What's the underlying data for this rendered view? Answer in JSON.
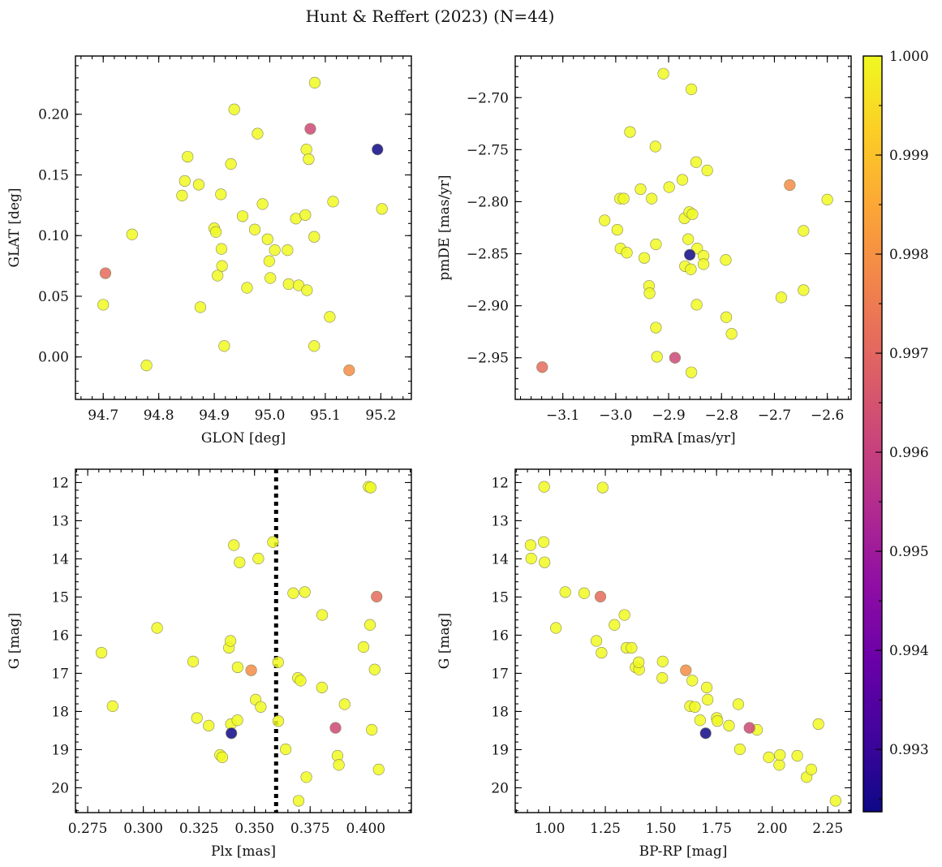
{
  "figure": {
    "title": "Hunt & Reffert (2023) (N=44)"
  },
  "colorbar": {
    "colormap": "plasma",
    "range": [
      0.99237,
      1.0
    ],
    "ticks": [
      0.993,
      0.994,
      0.995,
      0.996,
      0.997,
      0.998,
      0.999,
      1.0
    ],
    "tick_labels": [
      "0.993",
      "0.994",
      "0.995",
      "0.996",
      "0.997",
      "0.998",
      "0.999",
      "1.000"
    ]
  },
  "chart_data": [
    {
      "type": "scatter",
      "id": "glon-glat",
      "xlabel": "GLON [deg]",
      "ylabel": "GLAT [deg]",
      "xlim": [
        94.65,
        95.255
      ],
      "ylim": [
        -0.035,
        0.248
      ],
      "yinvert": false,
      "xticks": [
        94.7,
        94.8,
        94.9,
        95.0,
        95.1,
        95.2
      ],
      "xtick_labels": [
        "94.7",
        "94.8",
        "94.9",
        "95.0",
        "95.1",
        "95.2"
      ],
      "yticks": [
        0.0,
        0.05,
        0.1,
        0.15,
        0.2
      ],
      "ytick_labels": [
        "0.00",
        "0.05",
        "0.10",
        "0.15",
        "0.20"
      ],
      "points": [
        {
          "x": 94.7,
          "y": 0.043,
          "c": 1.0
        },
        {
          "x": 94.704,
          "y": 0.069,
          "c": 0.9971
        },
        {
          "x": 94.752,
          "y": 0.101,
          "c": 1.0
        },
        {
          "x": 94.778,
          "y": -0.007,
          "c": 1.0
        },
        {
          "x": 94.842,
          "y": 0.133,
          "c": 1.0
        },
        {
          "x": 94.847,
          "y": 0.145,
          "c": 1.0
        },
        {
          "x": 94.852,
          "y": 0.165,
          "c": 1.0
        },
        {
          "x": 94.872,
          "y": 0.142,
          "c": 1.0
        },
        {
          "x": 94.875,
          "y": 0.041,
          "c": 1.0
        },
        {
          "x": 94.9,
          "y": 0.106,
          "c": 1.0
        },
        {
          "x": 94.903,
          "y": 0.103,
          "c": 1.0
        },
        {
          "x": 94.906,
          "y": 0.067,
          "c": 1.0
        },
        {
          "x": 94.912,
          "y": 0.134,
          "c": 1.0
        },
        {
          "x": 94.913,
          "y": 0.089,
          "c": 1.0
        },
        {
          "x": 94.914,
          "y": 0.075,
          "c": 1.0
        },
        {
          "x": 94.918,
          "y": 0.009,
          "c": 1.0
        },
        {
          "x": 94.93,
          "y": 0.159,
          "c": 1.0
        },
        {
          "x": 94.936,
          "y": 0.204,
          "c": 1.0
        },
        {
          "x": 94.951,
          "y": 0.116,
          "c": 1.0
        },
        {
          "x": 94.959,
          "y": 0.057,
          "c": 1.0
        },
        {
          "x": 94.973,
          "y": 0.105,
          "c": 1.0
        },
        {
          "x": 94.978,
          "y": 0.184,
          "c": 1.0
        },
        {
          "x": 94.987,
          "y": 0.126,
          "c": 1.0
        },
        {
          "x": 94.996,
          "y": 0.097,
          "c": 1.0
        },
        {
          "x": 94.999,
          "y": 0.079,
          "c": 1.0
        },
        {
          "x": 95.001,
          "y": 0.065,
          "c": 1.0
        },
        {
          "x": 95.009,
          "y": 0.088,
          "c": 1.0
        },
        {
          "x": 95.032,
          "y": 0.088,
          "c": 1.0
        },
        {
          "x": 95.034,
          "y": 0.06,
          "c": 1.0
        },
        {
          "x": 95.047,
          "y": 0.114,
          "c": 1.0
        },
        {
          "x": 95.052,
          "y": 0.059,
          "c": 1.0
        },
        {
          "x": 95.064,
          "y": 0.117,
          "c": 1.0
        },
        {
          "x": 95.066,
          "y": 0.171,
          "c": 1.0
        },
        {
          "x": 95.067,
          "y": 0.055,
          "c": 1.0
        },
        {
          "x": 95.07,
          "y": 0.163,
          "c": 1.0
        },
        {
          "x": 95.073,
          "y": 0.188,
          "c": 0.9962
        },
        {
          "x": 95.08,
          "y": 0.099,
          "c": 1.0
        },
        {
          "x": 95.08,
          "y": 0.009,
          "c": 1.0
        },
        {
          "x": 95.081,
          "y": 0.226,
          "c": 1.0
        },
        {
          "x": 95.108,
          "y": 0.033,
          "c": 1.0
        },
        {
          "x": 95.114,
          "y": 0.128,
          "c": 1.0
        },
        {
          "x": 95.143,
          "y": -0.011,
          "c": 0.9979
        },
        {
          "x": 95.194,
          "y": 0.171,
          "c": 0.9924
        },
        {
          "x": 95.202,
          "y": 0.122,
          "c": 1.0
        }
      ]
    },
    {
      "type": "scatter",
      "id": "pmra-pmde",
      "xlabel": "pmRA [mas/yr]",
      "ylabel": "pmDE [mas/yr]",
      "xlim": [
        -3.19,
        -2.555
      ],
      "ylim": [
        -2.99,
        -2.66
      ],
      "yinvert": false,
      "xticks": [
        -3.1,
        -3.0,
        -2.9,
        -2.8,
        -2.7,
        -2.6
      ],
      "xtick_labels": [
        "−3.1",
        "−3.0",
        "−2.9",
        "−2.8",
        "−2.7",
        "−2.6"
      ],
      "yticks": [
        -2.95,
        -2.9,
        -2.85,
        -2.8,
        -2.75,
        -2.7
      ],
      "ytick_labels": [
        "−2.95",
        "−2.90",
        "−2.85",
        "−2.80",
        "−2.75",
        "−2.70"
      ],
      "points": [
        {
          "x": -3.139,
          "y": -2.959,
          "c": 0.9971
        },
        {
          "x": -3.021,
          "y": -2.818,
          "c": 1.0
        },
        {
          "x": -2.997,
          "y": -2.827,
          "c": 1.0
        },
        {
          "x": -2.992,
          "y": -2.797,
          "c": 1.0
        },
        {
          "x": -2.991,
          "y": -2.845,
          "c": 1.0
        },
        {
          "x": -2.985,
          "y": -2.797,
          "c": 1.0
        },
        {
          "x": -2.979,
          "y": -2.849,
          "c": 1.0
        },
        {
          "x": -2.973,
          "y": -2.733,
          "c": 1.0
        },
        {
          "x": -2.953,
          "y": -2.788,
          "c": 1.0
        },
        {
          "x": -2.946,
          "y": -2.854,
          "c": 1.0
        },
        {
          "x": -2.937,
          "y": -2.881,
          "c": 1.0
        },
        {
          "x": -2.936,
          "y": -2.888,
          "c": 1.0
        },
        {
          "x": -2.932,
          "y": -2.797,
          "c": 1.0
        },
        {
          "x": -2.925,
          "y": -2.747,
          "c": 1.0
        },
        {
          "x": -2.924,
          "y": -2.841,
          "c": 1.0
        },
        {
          "x": -2.924,
          "y": -2.921,
          "c": 1.0
        },
        {
          "x": -2.922,
          "y": -2.949,
          "c": 1.0
        },
        {
          "x": -2.91,
          "y": -2.677,
          "c": 1.0
        },
        {
          "x": -2.899,
          "y": -2.786,
          "c": 1.0
        },
        {
          "x": -2.888,
          "y": -2.95,
          "c": 0.9962
        },
        {
          "x": -2.874,
          "y": -2.779,
          "c": 1.0
        },
        {
          "x": -2.87,
          "y": -2.816,
          "c": 1.0
        },
        {
          "x": -2.869,
          "y": -2.862,
          "c": 1.0
        },
        {
          "x": -2.863,
          "y": -2.836,
          "c": 1.0
        },
        {
          "x": -2.861,
          "y": -2.81,
          "c": 1.0
        },
        {
          "x": -2.86,
          "y": -2.851,
          "c": 0.9924
        },
        {
          "x": -2.858,
          "y": -2.865,
          "c": 1.0
        },
        {
          "x": -2.857,
          "y": -2.964,
          "c": 1.0
        },
        {
          "x": -2.857,
          "y": -2.692,
          "c": 1.0
        },
        {
          "x": -2.855,
          "y": -2.812,
          "c": 1.0
        },
        {
          "x": -2.848,
          "y": -2.762,
          "c": 1.0
        },
        {
          "x": -2.847,
          "y": -2.899,
          "c": 1.0
        },
        {
          "x": -2.846,
          "y": -2.845,
          "c": 1.0
        },
        {
          "x": -2.834,
          "y": -2.852,
          "c": 1.0
        },
        {
          "x": -2.834,
          "y": -2.86,
          "c": 1.0
        },
        {
          "x": -2.827,
          "y": -2.77,
          "c": 1.0
        },
        {
          "x": -2.792,
          "y": -2.856,
          "c": 1.0
        },
        {
          "x": -2.791,
          "y": -2.911,
          "c": 1.0
        },
        {
          "x": -2.781,
          "y": -2.927,
          "c": 1.0
        },
        {
          "x": -2.687,
          "y": -2.892,
          "c": 1.0
        },
        {
          "x": -2.671,
          "y": -2.784,
          "c": 0.9979
        },
        {
          "x": -2.645,
          "y": -2.828,
          "c": 1.0
        },
        {
          "x": -2.645,
          "y": -2.885,
          "c": 1.0
        },
        {
          "x": -2.6,
          "y": -2.798,
          "c": 1.0
        }
      ]
    },
    {
      "type": "scatter",
      "id": "plx-g",
      "xlabel": "Plx [mas]",
      "ylabel": "G [mag]",
      "xlim": [
        0.2695,
        0.4205
      ],
      "ylim": [
        11.65,
        20.65
      ],
      "yinvert": true,
      "xticks": [
        0.275,
        0.3,
        0.325,
        0.35,
        0.375,
        0.4
      ],
      "xtick_labels": [
        "0.275",
        "0.300",
        "0.325",
        "0.350",
        "0.375",
        "0.400"
      ],
      "yticks": [
        12,
        13,
        14,
        15,
        16,
        17,
        18,
        19,
        20
      ],
      "ytick_labels": [
        "12",
        "13",
        "14",
        "15",
        "16",
        "17",
        "18",
        "19",
        "20"
      ],
      "vline": {
        "x": 0.3597
      },
      "points": [
        {
          "x": 0.2812,
          "y": 16.46,
          "c": 1.0
        },
        {
          "x": 0.2862,
          "y": 17.86,
          "c": 1.0
        },
        {
          "x": 0.3062,
          "y": 15.81,
          "c": 1.0
        },
        {
          "x": 0.3224,
          "y": 16.69,
          "c": 1.0
        },
        {
          "x": 0.3241,
          "y": 18.17,
          "c": 1.0
        },
        {
          "x": 0.3294,
          "y": 18.37,
          "c": 1.0
        },
        {
          "x": 0.3345,
          "y": 19.14,
          "c": 1.0
        },
        {
          "x": 0.3355,
          "y": 19.2,
          "c": 1.0
        },
        {
          "x": 0.3385,
          "y": 16.33,
          "c": 1.0
        },
        {
          "x": 0.3392,
          "y": 16.15,
          "c": 1.0
        },
        {
          "x": 0.3394,
          "y": 18.33,
          "c": 1.0
        },
        {
          "x": 0.3396,
          "y": 18.57,
          "c": 0.9924
        },
        {
          "x": 0.3407,
          "y": 13.64,
          "c": 1.0
        },
        {
          "x": 0.3423,
          "y": 18.23,
          "c": 1.0
        },
        {
          "x": 0.3424,
          "y": 16.84,
          "c": 1.0
        },
        {
          "x": 0.3433,
          "y": 14.09,
          "c": 1.0
        },
        {
          "x": 0.3485,
          "y": 16.92,
          "c": 0.9979
        },
        {
          "x": 0.3505,
          "y": 17.69,
          "c": 1.0
        },
        {
          "x": 0.3517,
          "y": 13.99,
          "c": 1.0
        },
        {
          "x": 0.3528,
          "y": 17.88,
          "c": 1.0
        },
        {
          "x": 0.3583,
          "y": 13.56,
          "c": 1.0
        },
        {
          "x": 0.3606,
          "y": 16.71,
          "c": 1.0
        },
        {
          "x": 0.3607,
          "y": 18.25,
          "c": 1.0
        },
        {
          "x": 0.364,
          "y": 18.99,
          "c": 1.0
        },
        {
          "x": 0.3674,
          "y": 14.9,
          "c": 1.0
        },
        {
          "x": 0.3695,
          "y": 17.12,
          "c": 1.0
        },
        {
          "x": 0.3698,
          "y": 20.34,
          "c": 1.0
        },
        {
          "x": 0.3707,
          "y": 17.19,
          "c": 1.0
        },
        {
          "x": 0.3726,
          "y": 14.87,
          "c": 1.0
        },
        {
          "x": 0.3733,
          "y": 19.72,
          "c": 1.0
        },
        {
          "x": 0.3803,
          "y": 17.37,
          "c": 1.0
        },
        {
          "x": 0.3804,
          "y": 15.47,
          "c": 1.0
        },
        {
          "x": 0.3864,
          "y": 18.43,
          "c": 0.9962
        },
        {
          "x": 0.3873,
          "y": 19.16,
          "c": 1.0
        },
        {
          "x": 0.3879,
          "y": 19.4,
          "c": 1.0
        },
        {
          "x": 0.3905,
          "y": 17.81,
          "c": 1.0
        },
        {
          "x": 0.399,
          "y": 16.31,
          "c": 1.0
        },
        {
          "x": 0.4013,
          "y": 12.11,
          "c": 1.0
        },
        {
          "x": 0.4022,
          "y": 12.13,
          "c": 1.0
        },
        {
          "x": 0.4019,
          "y": 15.73,
          "c": 1.0
        },
        {
          "x": 0.4027,
          "y": 18.48,
          "c": 1.0
        },
        {
          "x": 0.404,
          "y": 16.9,
          "c": 1.0
        },
        {
          "x": 0.4049,
          "y": 14.99,
          "c": 0.9971
        },
        {
          "x": 0.4058,
          "y": 19.52,
          "c": 1.0
        }
      ]
    },
    {
      "type": "scatter",
      "id": "bprp-g",
      "xlabel": "BP-RP [mag]",
      "ylabel": "G [mag]",
      "xlim": [
        0.845,
        2.355
      ],
      "ylim": [
        11.65,
        20.65
      ],
      "yinvert": true,
      "xticks": [
        1.0,
        1.25,
        1.5,
        1.75,
        2.0,
        2.25
      ],
      "xtick_labels": [
        "1.00",
        "1.25",
        "1.50",
        "1.75",
        "2.00",
        "2.25"
      ],
      "yticks": [
        12,
        13,
        14,
        15,
        16,
        17,
        18,
        19,
        20
      ],
      "ytick_labels": [
        "12",
        "13",
        "14",
        "15",
        "16",
        "17",
        "18",
        "19",
        "20"
      ],
      "points": [
        {
          "x": 0.914,
          "y": 13.64,
          "c": 1.0
        },
        {
          "x": 0.917,
          "y": 13.99,
          "c": 1.0
        },
        {
          "x": 0.973,
          "y": 13.56,
          "c": 1.0
        },
        {
          "x": 0.975,
          "y": 12.11,
          "c": 1.0
        },
        {
          "x": 0.977,
          "y": 14.09,
          "c": 1.0
        },
        {
          "x": 1.028,
          "y": 15.81,
          "c": 1.0
        },
        {
          "x": 1.07,
          "y": 14.87,
          "c": 1.0
        },
        {
          "x": 1.155,
          "y": 14.9,
          "c": 1.0
        },
        {
          "x": 1.21,
          "y": 16.15,
          "c": 1.0
        },
        {
          "x": 1.228,
          "y": 14.99,
          "c": 0.9971
        },
        {
          "x": 1.233,
          "y": 16.46,
          "c": 1.0
        },
        {
          "x": 1.238,
          "y": 12.13,
          "c": 1.0
        },
        {
          "x": 1.291,
          "y": 15.73,
          "c": 1.0
        },
        {
          "x": 1.336,
          "y": 15.47,
          "c": 1.0
        },
        {
          "x": 1.345,
          "y": 16.33,
          "c": 1.0
        },
        {
          "x": 1.368,
          "y": 16.33,
          "c": 1.0
        },
        {
          "x": 1.386,
          "y": 16.84,
          "c": 1.0
        },
        {
          "x": 1.402,
          "y": 16.9,
          "c": 1.0
        },
        {
          "x": 1.4,
          "y": 16.71,
          "c": 1.0
        },
        {
          "x": 1.506,
          "y": 17.12,
          "c": 1.0
        },
        {
          "x": 1.508,
          "y": 16.69,
          "c": 1.0
        },
        {
          "x": 1.612,
          "y": 16.92,
          "c": 0.9979
        },
        {
          "x": 1.641,
          "y": 17.19,
          "c": 1.0
        },
        {
          "x": 1.631,
          "y": 17.86,
          "c": 1.0
        },
        {
          "x": 1.653,
          "y": 17.88,
          "c": 1.0
        },
        {
          "x": 1.676,
          "y": 18.23,
          "c": 1.0
        },
        {
          "x": 1.701,
          "y": 18.57,
          "c": 0.9924
        },
        {
          "x": 1.706,
          "y": 17.37,
          "c": 1.0
        },
        {
          "x": 1.71,
          "y": 17.69,
          "c": 1.0
        },
        {
          "x": 1.751,
          "y": 18.17,
          "c": 1.0
        },
        {
          "x": 1.754,
          "y": 18.25,
          "c": 1.0
        },
        {
          "x": 1.806,
          "y": 18.37,
          "c": 1.0
        },
        {
          "x": 1.848,
          "y": 17.81,
          "c": 1.0
        },
        {
          "x": 1.855,
          "y": 18.99,
          "c": 1.0
        },
        {
          "x": 1.898,
          "y": 18.43,
          "c": 0.9962
        },
        {
          "x": 1.932,
          "y": 18.48,
          "c": 1.0
        },
        {
          "x": 1.985,
          "y": 19.2,
          "c": 1.0
        },
        {
          "x": 2.032,
          "y": 19.4,
          "c": 1.0
        },
        {
          "x": 2.035,
          "y": 19.14,
          "c": 1.0
        },
        {
          "x": 2.113,
          "y": 19.16,
          "c": 1.0
        },
        {
          "x": 2.155,
          "y": 19.72,
          "c": 1.0
        },
        {
          "x": 2.176,
          "y": 19.52,
          "c": 1.0
        },
        {
          "x": 2.208,
          "y": 18.33,
          "c": 1.0
        },
        {
          "x": 2.285,
          "y": 20.34,
          "c": 1.0
        }
      ]
    }
  ]
}
